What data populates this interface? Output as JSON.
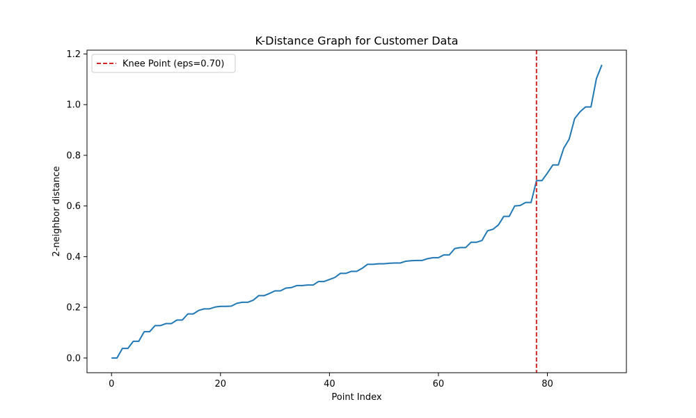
{
  "chart_data": {
    "type": "line",
    "title": "K-Distance Graph for Customer Data",
    "xlabel": "Point Index",
    "ylabel": "2-neighbor distance",
    "xlim": [
      -4.5,
      94.5
    ],
    "ylim": [
      -0.058,
      1.215
    ],
    "xticks": [
      0,
      20,
      40,
      60,
      80
    ],
    "yticks": [
      0.0,
      0.2,
      0.4,
      0.6,
      0.8,
      1.0,
      1.2
    ],
    "xtick_labels": [
      "0",
      "20",
      "40",
      "60",
      "80"
    ],
    "ytick_labels": [
      "0.0",
      "0.2",
      "0.4",
      "0.6",
      "0.8",
      "1.0",
      "1.2"
    ],
    "grid": false,
    "legend": {
      "placement": "top-left",
      "entries": [
        "Knee Point (eps=0.70)"
      ]
    },
    "series": [
      {
        "color": "#1f77b4",
        "x": [
          0,
          1,
          2,
          3,
          4,
          5,
          6,
          7,
          8,
          9,
          10,
          11,
          12,
          13,
          14,
          15,
          16,
          17,
          18,
          19,
          20,
          21,
          22,
          23,
          24,
          25,
          26,
          27,
          28,
          29,
          30,
          31,
          32,
          33,
          34,
          35,
          36,
          37,
          38,
          39,
          40,
          41,
          42,
          43,
          44,
          45,
          46,
          47,
          48,
          49,
          50,
          51,
          52,
          53,
          54,
          55,
          56,
          57,
          58,
          59,
          60,
          61,
          62,
          63,
          64,
          65,
          66,
          67,
          68,
          69,
          70,
          71,
          72,
          73,
          74,
          75,
          76,
          77,
          78,
          79,
          80,
          81,
          82,
          83,
          84,
          85,
          86,
          87,
          88,
          89,
          90
        ],
        "y": [
          0.0,
          0.0,
          0.038,
          0.038,
          0.066,
          0.066,
          0.104,
          0.104,
          0.128,
          0.128,
          0.136,
          0.136,
          0.15,
          0.15,
          0.174,
          0.174,
          0.188,
          0.194,
          0.194,
          0.201,
          0.204,
          0.204,
          0.205,
          0.216,
          0.22,
          0.22,
          0.228,
          0.246,
          0.246,
          0.255,
          0.265,
          0.265,
          0.276,
          0.278,
          0.286,
          0.286,
          0.288,
          0.288,
          0.302,
          0.302,
          0.31,
          0.318,
          0.334,
          0.334,
          0.342,
          0.342,
          0.354,
          0.37,
          0.37,
          0.372,
          0.372,
          0.374,
          0.375,
          0.375,
          0.382,
          0.384,
          0.385,
          0.385,
          0.392,
          0.396,
          0.396,
          0.407,
          0.407,
          0.432,
          0.436,
          0.436,
          0.457,
          0.457,
          0.464,
          0.502,
          0.508,
          0.525,
          0.559,
          0.559,
          0.6,
          0.602,
          0.614,
          0.614,
          0.7,
          0.7,
          0.73,
          0.762,
          0.762,
          0.828,
          0.864,
          0.945,
          0.972,
          0.991,
          0.991,
          1.103,
          1.157
        ]
      }
    ],
    "knee": {
      "x": 78,
      "eps": 0.7,
      "color": "#d62728",
      "label": "Knee Point (eps=0.70)"
    }
  }
}
